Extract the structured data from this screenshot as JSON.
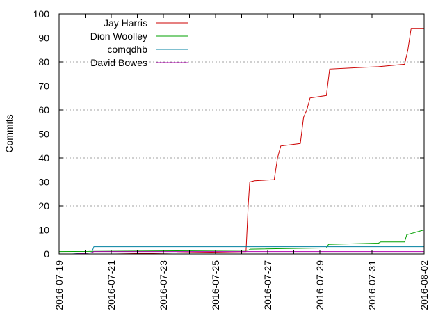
{
  "chart_data": {
    "type": "line",
    "title": "",
    "xlabel": "",
    "ylabel": "Commits",
    "xlim": [
      "2016-07-19",
      "2016-08-02"
    ],
    "ylim": [
      0,
      100
    ],
    "x_ticks": [
      "2016-07-19",
      "2016-07-21",
      "2016-07-23",
      "2016-07-25",
      "2016-07-27",
      "2016-07-29",
      "2016-07-31",
      "2016-08-02"
    ],
    "y_ticks": [
      0,
      10,
      20,
      30,
      40,
      50,
      60,
      70,
      80,
      90,
      100
    ],
    "grid": {
      "horizontal": true,
      "vertical": false,
      "style": "dotted"
    },
    "legend_position": "top-left",
    "series": [
      {
        "name": "Jay Harris",
        "color": "#cc0000",
        "points": [
          [
            "2016-07-21 04:00",
            0
          ],
          [
            "2016-07-26 04:00",
            1
          ],
          [
            "2016-07-26 05:00",
            10
          ],
          [
            "2016-07-26 06:00",
            20
          ],
          [
            "2016-07-26 07:30",
            30
          ],
          [
            "2016-07-26 12:00",
            30.5
          ],
          [
            "2016-07-27 06:00",
            31
          ],
          [
            "2016-07-27 09:00",
            40
          ],
          [
            "2016-07-27 12:00",
            45
          ],
          [
            "2016-07-28 06:00",
            46
          ],
          [
            "2016-07-28 09:00",
            57
          ],
          [
            "2016-07-28 12:00",
            60
          ],
          [
            "2016-07-28 15:00",
            65
          ],
          [
            "2016-07-29 06:00",
            66
          ],
          [
            "2016-07-29 09:00",
            77
          ],
          [
            "2016-07-30 06:00",
            77.5
          ],
          [
            "2016-07-31 06:00",
            78
          ],
          [
            "2016-08-01 06:00",
            79
          ],
          [
            "2016-08-01 09:00",
            85
          ],
          [
            "2016-08-01 12:00",
            94
          ],
          [
            "2016-08-02 00:00",
            94
          ]
        ]
      },
      {
        "name": "Dion Woolley",
        "color": "#00a000",
        "points": [
          [
            "2016-07-19 00:00",
            1
          ],
          [
            "2016-07-26 06:00",
            1.5
          ],
          [
            "2016-07-26 08:00",
            2
          ],
          [
            "2016-07-29 06:00",
            2.5
          ],
          [
            "2016-07-29 08:00",
            4
          ],
          [
            "2016-07-31 06:00",
            4.5
          ],
          [
            "2016-07-31 08:00",
            5
          ],
          [
            "2016-08-01 06:00",
            5
          ],
          [
            "2016-08-01 08:00",
            8
          ],
          [
            "2016-08-02 00:00",
            10
          ]
        ]
      },
      {
        "name": "comqdhb",
        "color": "#0080a0",
        "points": [
          [
            "2016-07-19 12:00",
            0
          ],
          [
            "2016-07-20 06:00",
            0.5
          ],
          [
            "2016-07-20 08:00",
            3
          ],
          [
            "2016-08-02 00:00",
            3
          ]
        ]
      },
      {
        "name": "David Bowes",
        "color": "#b000b0",
        "points": [
          [
            "2016-07-19 14:00",
            0
          ],
          [
            "2016-07-20 06:00",
            0.5
          ],
          [
            "2016-07-20 08:00",
            1
          ],
          [
            "2016-08-02 00:00",
            1
          ]
        ]
      }
    ]
  }
}
